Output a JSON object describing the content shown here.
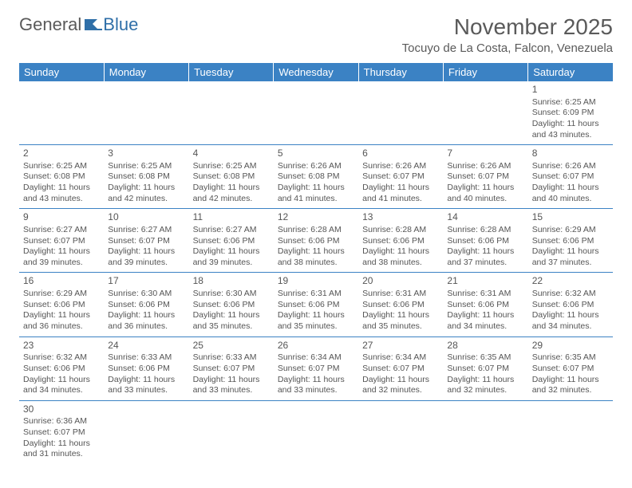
{
  "logo": {
    "text1": "General",
    "text2": "Blue"
  },
  "title": "November 2025",
  "subtitle": "Tocuyo de La Costa, Falcon, Venezuela",
  "colors": {
    "header_bg": "#3b82c4",
    "header_text": "#ffffff",
    "border": "#3b82c4",
    "text": "#555555",
    "logo_gray": "#5a5a5a",
    "logo_blue": "#2f6fa8",
    "page_bg": "#ffffff"
  },
  "day_headers": [
    "Sunday",
    "Monday",
    "Tuesday",
    "Wednesday",
    "Thursday",
    "Friday",
    "Saturday"
  ],
  "weeks": [
    [
      null,
      null,
      null,
      null,
      null,
      null,
      {
        "n": "1",
        "sr": "6:25 AM",
        "ss": "6:09 PM",
        "dl": "11 hours and 43 minutes."
      }
    ],
    [
      {
        "n": "2",
        "sr": "6:25 AM",
        "ss": "6:08 PM",
        "dl": "11 hours and 43 minutes."
      },
      {
        "n": "3",
        "sr": "6:25 AM",
        "ss": "6:08 PM",
        "dl": "11 hours and 42 minutes."
      },
      {
        "n": "4",
        "sr": "6:25 AM",
        "ss": "6:08 PM",
        "dl": "11 hours and 42 minutes."
      },
      {
        "n": "5",
        "sr": "6:26 AM",
        "ss": "6:08 PM",
        "dl": "11 hours and 41 minutes."
      },
      {
        "n": "6",
        "sr": "6:26 AM",
        "ss": "6:07 PM",
        "dl": "11 hours and 41 minutes."
      },
      {
        "n": "7",
        "sr": "6:26 AM",
        "ss": "6:07 PM",
        "dl": "11 hours and 40 minutes."
      },
      {
        "n": "8",
        "sr": "6:26 AM",
        "ss": "6:07 PM",
        "dl": "11 hours and 40 minutes."
      }
    ],
    [
      {
        "n": "9",
        "sr": "6:27 AM",
        "ss": "6:07 PM",
        "dl": "11 hours and 39 minutes."
      },
      {
        "n": "10",
        "sr": "6:27 AM",
        "ss": "6:07 PM",
        "dl": "11 hours and 39 minutes."
      },
      {
        "n": "11",
        "sr": "6:27 AM",
        "ss": "6:06 PM",
        "dl": "11 hours and 39 minutes."
      },
      {
        "n": "12",
        "sr": "6:28 AM",
        "ss": "6:06 PM",
        "dl": "11 hours and 38 minutes."
      },
      {
        "n": "13",
        "sr": "6:28 AM",
        "ss": "6:06 PM",
        "dl": "11 hours and 38 minutes."
      },
      {
        "n": "14",
        "sr": "6:28 AM",
        "ss": "6:06 PM",
        "dl": "11 hours and 37 minutes."
      },
      {
        "n": "15",
        "sr": "6:29 AM",
        "ss": "6:06 PM",
        "dl": "11 hours and 37 minutes."
      }
    ],
    [
      {
        "n": "16",
        "sr": "6:29 AM",
        "ss": "6:06 PM",
        "dl": "11 hours and 36 minutes."
      },
      {
        "n": "17",
        "sr": "6:30 AM",
        "ss": "6:06 PM",
        "dl": "11 hours and 36 minutes."
      },
      {
        "n": "18",
        "sr": "6:30 AM",
        "ss": "6:06 PM",
        "dl": "11 hours and 35 minutes."
      },
      {
        "n": "19",
        "sr": "6:31 AM",
        "ss": "6:06 PM",
        "dl": "11 hours and 35 minutes."
      },
      {
        "n": "20",
        "sr": "6:31 AM",
        "ss": "6:06 PM",
        "dl": "11 hours and 35 minutes."
      },
      {
        "n": "21",
        "sr": "6:31 AM",
        "ss": "6:06 PM",
        "dl": "11 hours and 34 minutes."
      },
      {
        "n": "22",
        "sr": "6:32 AM",
        "ss": "6:06 PM",
        "dl": "11 hours and 34 minutes."
      }
    ],
    [
      {
        "n": "23",
        "sr": "6:32 AM",
        "ss": "6:06 PM",
        "dl": "11 hours and 34 minutes."
      },
      {
        "n": "24",
        "sr": "6:33 AM",
        "ss": "6:06 PM",
        "dl": "11 hours and 33 minutes."
      },
      {
        "n": "25",
        "sr": "6:33 AM",
        "ss": "6:07 PM",
        "dl": "11 hours and 33 minutes."
      },
      {
        "n": "26",
        "sr": "6:34 AM",
        "ss": "6:07 PM",
        "dl": "11 hours and 33 minutes."
      },
      {
        "n": "27",
        "sr": "6:34 AM",
        "ss": "6:07 PM",
        "dl": "11 hours and 32 minutes."
      },
      {
        "n": "28",
        "sr": "6:35 AM",
        "ss": "6:07 PM",
        "dl": "11 hours and 32 minutes."
      },
      {
        "n": "29",
        "sr": "6:35 AM",
        "ss": "6:07 PM",
        "dl": "11 hours and 32 minutes."
      }
    ],
    [
      {
        "n": "30",
        "sr": "6:36 AM",
        "ss": "6:07 PM",
        "dl": "11 hours and 31 minutes."
      },
      null,
      null,
      null,
      null,
      null,
      null
    ]
  ],
  "labels": {
    "sunrise": "Sunrise: ",
    "sunset": "Sunset: ",
    "daylight": "Daylight: "
  }
}
